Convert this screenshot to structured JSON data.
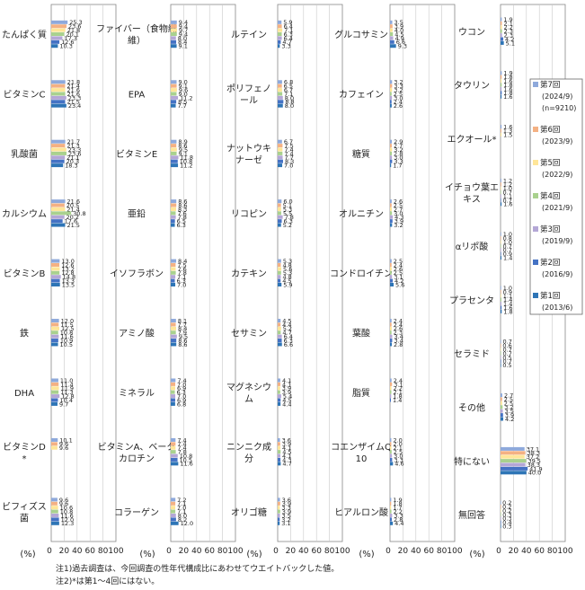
{
  "unit_label": "(%)",
  "notes": [
    "注1)過去調査は、今回調査の性年代構成比にあわせてウエイトバックした値。",
    "注2)*は第1〜4回にはない。"
  ],
  "colors": {
    "series": [
      "#8EA9DB",
      "#F4B183",
      "#FFE699",
      "#A9D18E",
      "#B4A7D6",
      "#4472C4",
      "#2E75B6"
    ],
    "frame": "#888888",
    "grid": "#c8c8c8"
  },
  "chart_data": {
    "type": "bar",
    "orientation": "horizontal",
    "xlim": [
      0,
      100
    ],
    "xticks": [
      "0",
      "20",
      "40",
      "60",
      "80",
      "100"
    ],
    "legend_position": "right",
    "series": [
      {
        "name": "第7回",
        "period": "(2024/9)",
        "sample": "(n=9210)"
      },
      {
        "name": "第6回",
        "period": "(2023/9)"
      },
      {
        "name": "第5回",
        "period": "(2022/9)"
      },
      {
        "name": "第4回",
        "period": "(2021/9)"
      },
      {
        "name": "第3回",
        "period": "(2019/9)"
      },
      {
        "name": "第2回",
        "period": "(2016/9)"
      },
      {
        "name": "第1回",
        "period": "(2013/6)"
      }
    ],
    "panels": [
      {
        "categories": [
          {
            "label": "たんぱく質",
            "values": [
              25.3,
              23.6,
              21.8,
              20.1,
              17.3,
              12.6,
              10.3
            ]
          },
          {
            "label": "ビタミンC",
            "values": [
              21.8,
              21.4,
              21.6,
              21.6,
              23.3,
              21.5,
              23.4
            ]
          },
          {
            "label": "乳酸菌",
            "values": [
              21.7,
              21.3,
              23.3,
              23.6,
              21.1,
              20.3,
              18.3
            ]
          },
          {
            "label": "カルシウム",
            "values": [
              21.6,
              20.5,
              21.4,
              30.8,
              20.2,
              17.6,
              21.5
            ]
          },
          {
            "label": "ビタミンB",
            "values": [
              13.0,
              12.6,
              13.2,
              12.8,
              14.8,
              13.3,
              13.5
            ]
          },
          {
            "label": "鉄",
            "values": [
              12.0,
              11.5,
              12.5,
              10.8,
              11.6,
              10.9,
              10.5
            ]
          },
          {
            "label": "DHA",
            "values": [
              11.0,
              11.4,
              11.9,
              11.3,
              12.8,
              10.4,
              9.7
            ]
          },
          {
            "label": "ビタミンD*",
            "values": [
              10.1,
              9.6,
              9.6,
              null,
              null,
              null,
              null
            ]
          },
          {
            "label": "ビフィズス菌",
            "values": [
              9.6,
              9.6,
              10.6,
              10.8,
              11.6,
              12.0,
              12.3
            ]
          }
        ]
      },
      {
        "categories": [
          {
            "label": "ファイバー（食物繊維）",
            "values": [
              9.4,
              9.4,
              9.7,
              9.4,
              8.0,
              8.4,
              9.1
            ]
          },
          {
            "label": "EPA",
            "values": [
              9.0,
              9.1,
              9.6,
              9.0,
              11.2,
              8.5,
              7.7
            ]
          },
          {
            "label": "ビタミンE",
            "values": [
              8.9,
              8.6,
              9.5,
              9.1,
              11.8,
              10.8,
              11.2
            ]
          },
          {
            "label": "亜鉛",
            "values": [
              8.6,
              8.6,
              8.3,
              7.6,
              7.8,
              6.5,
              6.3
            ]
          },
          {
            "label": "イソフラボン",
            "values": [
              8.4,
              7.5,
              7.6,
              7.8,
              7.1,
              6.3,
              7.0
            ]
          },
          {
            "label": "アミノ酸",
            "values": [
              8.1,
              7.7,
              8.4,
              7.9,
              9.5,
              8.6,
              8.6
            ]
          },
          {
            "label": "ミネラル",
            "values": [
              7.4,
              7.0,
              6.9,
              6.3,
              7.0,
              6.9,
              6.8
            ]
          },
          {
            "label": "ビタミンA、ベータカロチン",
            "values": [
              7.4,
              7.4,
              7.4,
              7.8,
              10.8,
              10.5,
              11.6
            ]
          },
          {
            "label": "コラーゲン",
            "values": [
              7.2,
              7.1,
              7.0,
              7.1,
              8.0,
              8.2,
              12.0
            ]
          }
        ]
      },
      {
        "categories": [
          {
            "label": "ルテイン",
            "values": [
              5.9,
              6.4,
              7.1,
              6.3,
              6.4,
              4.7,
              3.3
            ]
          },
          {
            "label": "ポリフェノール",
            "values": [
              6.8,
              6.5,
              6.7,
              7.1,
              8.0,
              8.8,
              8.0
            ]
          },
          {
            "label": "ナットウキナーゼ",
            "values": [
              6.7,
              7.5,
              7.4,
              7.4,
              7.7,
              8.3,
              7.0
            ]
          },
          {
            "label": "リコピン",
            "values": [
              6.0,
              5.1,
              5.3,
              5.5,
              7.8,
              6.3,
              5.2
            ]
          },
          {
            "label": "カテキン",
            "values": [
              5.3,
              4.8,
              5.6,
              5.3,
              4.8,
              4.5,
              5.9
            ]
          },
          {
            "label": "セサミン",
            "values": [
              4.5,
              4.4,
              5.2,
              4.7,
              6.4,
              6.3,
              6.6
            ]
          },
          {
            "label": "マグネシウム",
            "values": [
              4.1,
              4.1,
              3.9,
              3.9,
              5.4,
              4.5,
              4.4
            ]
          },
          {
            "label": "ニンニク成分",
            "values": [
              3.6,
              3.9,
              4.1,
              4.5,
              4.1,
              4.3,
              4.7
            ]
          },
          {
            "label": "オリゴ糖",
            "values": [
              3.6,
              3.9,
              3.3,
              3.9,
              3.5,
              3.2,
              3.1
            ]
          }
        ]
      },
      {
        "categories": [
          {
            "label": "グルコサミン",
            "values": [
              3.5,
              3.9,
              4.0,
              4.5,
              4.9,
              6.6,
              9.3
            ]
          },
          {
            "label": "カフェイン",
            "values": [
              3.2,
              3.3,
              3.2,
              2.5,
              3.0,
              2.4,
              2.6
            ]
          },
          {
            "label": "糖質",
            "values": [
              2.9,
              2.7,
              3.2,
              2.8,
              3.0,
              3.3,
              1.7
            ]
          },
          {
            "label": "オルニチン",
            "values": [
              2.6,
              2.5,
              2.7,
              3.0,
              4.3,
              3.9,
              3.2
            ]
          },
          {
            "label": "コンドロイチン",
            "values": [
              2.5,
              2.4,
              2.6,
              2.5,
              3.1,
              4.2,
              5.6
            ]
          },
          {
            "label": "葉酸",
            "values": [
              2.4,
              2.4,
              2.6,
              2.3,
              3.4,
              3.4,
              2.8
            ]
          },
          {
            "label": "脂質",
            "values": [
              2.4,
              3.1,
              2.2,
              2.1,
              1.8,
              1.4,
              null
            ]
          },
          {
            "label": "コエンザイムQ10",
            "values": [
              2.0,
              2.0,
              2.1,
              2.5,
              3.0,
              3.3,
              4.6
            ]
          },
          {
            "label": "ヒアルロン酸",
            "values": [
              1.9,
              1.8,
              1.7,
              2.2,
              3.3,
              2.8,
              4.4
            ]
          }
        ]
      },
      {
        "categories": [
          {
            "label": "ウコン",
            "values": [
              1.9,
              2.1,
              2.2,
              2.3,
              2.3,
              4.2,
              5.1
            ]
          },
          {
            "label": "タウリン",
            "values": [
              1.9,
              1.8,
              1.6,
              1.8,
              1.6,
              1.8,
              1.6
            ]
          },
          {
            "label": "エクオール*",
            "values": [
              1.6,
              1.3,
              1.5,
              null,
              null,
              null,
              null
            ]
          },
          {
            "label": "イチョウ葉エキス",
            "values": [
              1.2,
              1.2,
              1.0,
              0.7,
              1.1,
              0.7,
              1.6
            ]
          },
          {
            "label": "αリポ酸",
            "values": [
              1.0,
              0.8,
              1.0,
              0.7,
              0.7,
              0.9,
              1.4
            ]
          },
          {
            "label": "プラセンタ",
            "values": [
              1.0,
              0.9,
              1.1,
              1.4,
              1.4,
              1.6,
              1.8
            ]
          },
          {
            "label": "セラミド",
            "values": [
              0.7,
              0.6,
              0.7,
              0.7,
              0.5,
              0.7,
              0.5
            ]
          },
          {
            "label": "その他",
            "values": [
              2.7,
              2.5,
              2.5,
              3.2,
              3.5,
              3.9,
              4.2
            ]
          },
          {
            "label": "特にない",
            "values": [
              37.1,
              38.3,
              37.2,
              39.5,
              38.3,
              41.9,
              40.0
            ]
          },
          {
            "label": "無回答",
            "values": [
              0.2,
              0.2,
              0.2,
              0.3,
              0.3,
              0.4,
              0.3
            ]
          }
        ]
      }
    ]
  }
}
